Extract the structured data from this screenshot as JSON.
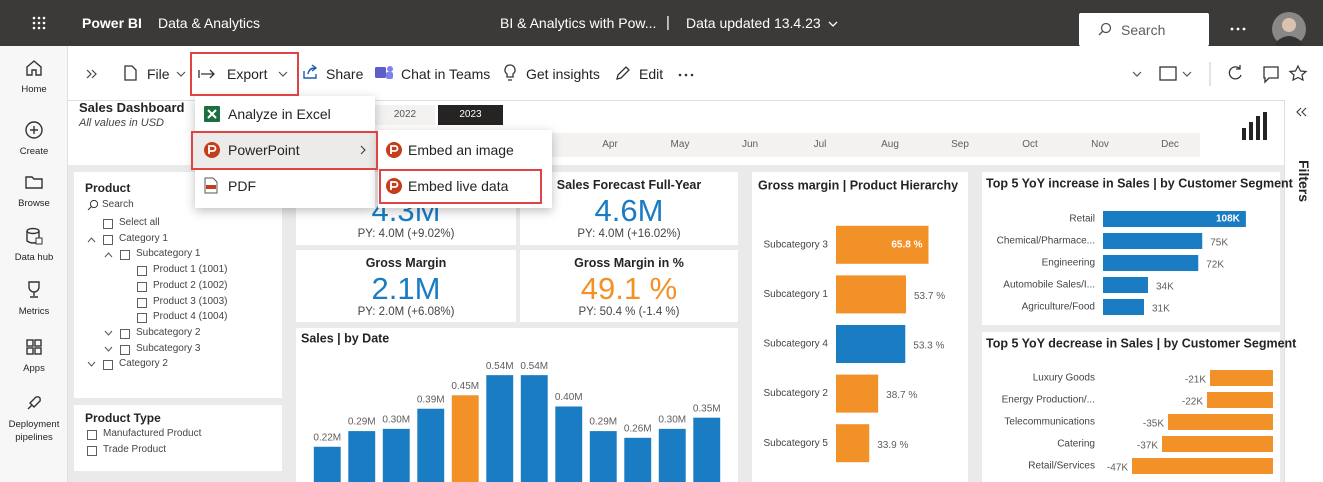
{
  "topbar": {
    "brand": "Power BI",
    "workspace": "Data & Analytics",
    "report_name": "BI & Analytics with Pow...",
    "separator": "|",
    "data_updated": "Data updated 13.4.23",
    "search": "Search"
  },
  "nav": [
    "Home",
    "Create",
    "Browse",
    "Data hub",
    "Metrics",
    "Apps",
    "Deployment pipelines"
  ],
  "toolbar": [
    "File",
    "Export",
    "Share",
    "Chat in Teams",
    "Get insights",
    "Edit"
  ],
  "export_menu": {
    "items": [
      "Analyze in Excel",
      "PowerPoint",
      "PDF"
    ],
    "submenu": [
      "Embed an image",
      "Embed live data"
    ]
  },
  "report": {
    "title": "Sales Dashboard",
    "subtitle": "All values in USD",
    "years": [
      "2022",
      "2023"
    ],
    "months": [
      "Apr",
      "May",
      "Jun",
      "Jul",
      "Aug",
      "Sep",
      "Oct",
      "Nov",
      "Dec"
    ]
  },
  "product_slicer": {
    "title": "Product",
    "search": "Search",
    "items": [
      "Select all",
      "Category 1",
      "Subcategory 1",
      "Product 1 (1001)",
      "Product 2 (1002)",
      "Product 3 (1003)",
      "Product 4 (1004)",
      "Subcategory 2",
      "Subcategory 3",
      "Category 2"
    ]
  },
  "product_type": {
    "title": "Product Type",
    "items": [
      "Manufactured Product",
      "Trade Product"
    ]
  },
  "kpis": [
    {
      "value": "4.3M",
      "py": "PY: 4.0M (+9.02%)",
      "color": "#1a7dc4"
    },
    {
      "title": "Sales Forecast Full-Year",
      "value": "4.6M",
      "py": "PY: 4.0M (+16.02%)",
      "color": "#1a7dc4"
    },
    {
      "title": "Gross Margin",
      "value": "2.1M",
      "py": "PY: 2.0M (+6.08%)",
      "color": "#1a7dc4"
    },
    {
      "title": "Gross Margin in %",
      "value": "49.1 %",
      "py": "PY: 50.4 % (-1.4 %)",
      "color": "#f39129"
    }
  ],
  "filters": "Filters",
  "chart_data": [
    {
      "type": "bar",
      "title": "Sales | by Date",
      "values": [
        0.22,
        0.29,
        0.3,
        0.39,
        0.45,
        0.54,
        0.54,
        0.4,
        0.29,
        0.26,
        0.3,
        0.35
      ],
      "value_labels": [
        "0.22M",
        "0.29M",
        "0.30M",
        "0.39M",
        "0.45M",
        "0.54M",
        "0.54M",
        "0.40M",
        "0.29M",
        "0.26M",
        "0.30M",
        "0.35M"
      ],
      "colors": [
        "#1a7dc4",
        "#1a7dc4",
        "#1a7dc4",
        "#1a7dc4",
        "#f39129",
        "#1a7dc4",
        "#1a7dc4",
        "#1a7dc4",
        "#1a7dc4",
        "#1a7dc4",
        "#1a7dc4",
        "#1a7dc4"
      ],
      "ylim": [
        0,
        0.63
      ]
    },
    {
      "type": "bar",
      "orientation": "horizontal",
      "title": "Gross margin | Product Hierarchy",
      "categories": [
        "Subcategory 3",
        "Subcategory 1",
        "Subcategory 4",
        "Subcategory 2",
        "Subcategory 5"
      ],
      "values": [
        65.8,
        53.7,
        53.3,
        38.7,
        33.9
      ],
      "value_labels": [
        "65.8 %",
        "53.7 %",
        "53.3 %",
        "38.7 %",
        "33.9 %"
      ],
      "colors": [
        "#f39129",
        "#f39129",
        "#1a7dc4",
        "#f39129",
        "#f39129"
      ],
      "xlim": [
        16,
        86
      ]
    },
    {
      "type": "bar",
      "orientation": "horizontal",
      "title": "Top 5 YoY increase in Sales | by Customer Segment",
      "categories": [
        "Retail",
        "Chemical/Pharmace...",
        "Engineering",
        "Automobile Sales/I...",
        "Agriculture/Food"
      ],
      "values": [
        108,
        75,
        72,
        34,
        31
      ],
      "value_labels": [
        "108K",
        "75K",
        "72K",
        "34K",
        "31K"
      ],
      "color": "#1a7dc4",
      "xlim": [
        0,
        130
      ]
    },
    {
      "type": "bar",
      "orientation": "horizontal",
      "title": "Top 5 YoY decrease in Sales | by Customer Segment",
      "categories": [
        "Luxury Goods",
        "Energy Production/...",
        "Telecommunications",
        "Catering",
        "Retail/Services"
      ],
      "values": [
        -21,
        -22,
        -35,
        -37,
        -47
      ],
      "value_labels": [
        "-21K",
        "-22K",
        "-35K",
        "-37K",
        "-47K"
      ],
      "color": "#f39129",
      "xlim": [
        -50,
        0
      ]
    }
  ]
}
